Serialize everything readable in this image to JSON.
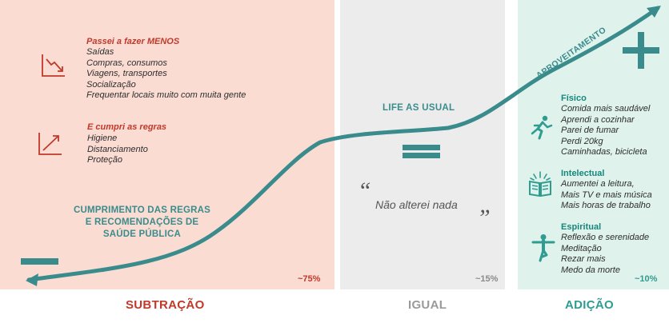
{
  "subtracao": {
    "heading_menos": "Passei a fazer MENOS",
    "items_menos": [
      "Saídas",
      "Compras, consumos",
      "Viagens, transportes",
      "Socialização",
      "Frequentar locais muito com muita gente"
    ],
    "heading_regras": "E cumpri as regras",
    "items_regras": [
      "Higiene",
      "Distanciamento",
      "Proteção"
    ],
    "cumprimento_lines": [
      "CUMPRIMENTO DAS REGRAS",
      "E RECOMENDAÇÕES DE",
      "SAÚDE PÚBLICA"
    ],
    "percent": "~75%",
    "footer": "SUBTRAÇÃO",
    "color": "#c0392b"
  },
  "igual": {
    "life_as_usual": "LIFE AS USUAL",
    "quote_open": "“",
    "quote_text": "Não alterei nada",
    "quote_close": "”",
    "percent": "~15%",
    "footer": "IGUAL",
    "color": "#9a9a9a"
  },
  "adicao": {
    "curve_label": "APROVEITAMENTO",
    "fisico": {
      "heading": "Físico",
      "items": [
        "Comida mais saudável",
        "Aprendi a cozinhar",
        "Parei de fumar",
        "Perdi 20kg",
        "Caminhadas, bicicleta"
      ]
    },
    "intelectual": {
      "heading": "Intelectual",
      "items": [
        "Aumentei a leitura,",
        "Mais TV e mais música",
        "Mais horas de trabalho"
      ]
    },
    "espiritual": {
      "heading": "Espiritual",
      "items": [
        "Reflexão e serenidade",
        "Meditação",
        "Rezar mais",
        "Medo da morte"
      ]
    },
    "percent": "~10%",
    "footer": "ADIÇÃO",
    "color": "#2f9c91"
  },
  "curve_color": "#3a8c8c"
}
